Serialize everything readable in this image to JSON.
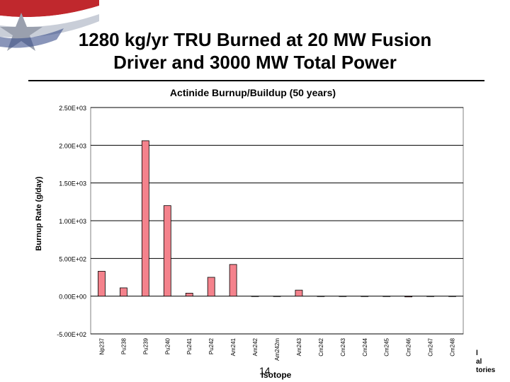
{
  "slide": {
    "title_line1": "1280 kg/yr TRU Burned at 20 MW Fusion",
    "title_line2": "Driver and 3000 MW Total Power",
    "page_number": "14",
    "footer_fragment_1": "l",
    "footer_fragment_2": "al",
    "footer_fragment_3": "tories"
  },
  "colors": {
    "bar": "#f4828c",
    "grid": "#000000"
  },
  "chart_data": {
    "type": "bar",
    "title": "Actinide Burnup/Buildup (50 years)",
    "xlabel": "Isotope",
    "ylabel": "Burnup Rate (g/day)",
    "ylim": [
      -500,
      2500
    ],
    "yticks": [
      -500,
      0,
      500,
      1000,
      1500,
      2000,
      2500
    ],
    "ytick_labels": [
      "-5.00E+02",
      "0.00E+00",
      "5.00E+02",
      "1.00E+03",
      "1.50E+03",
      "2.00E+03",
      "2.50E+03"
    ],
    "grid": true,
    "legend": "none",
    "categories": [
      "Np237",
      "Pu238",
      "Pu239",
      "Pu240",
      "Pu241",
      "Pu242",
      "Am241",
      "Am242",
      "Am242m",
      "Am243",
      "Cm242",
      "Cm243",
      "Cm244",
      "Cm245",
      "Cm246",
      "Cm247",
      "Cm248"
    ],
    "values": [
      330,
      110,
      2060,
      1200,
      40,
      250,
      420,
      0,
      0,
      80,
      0,
      0,
      0,
      0,
      -10,
      0,
      0
    ]
  }
}
